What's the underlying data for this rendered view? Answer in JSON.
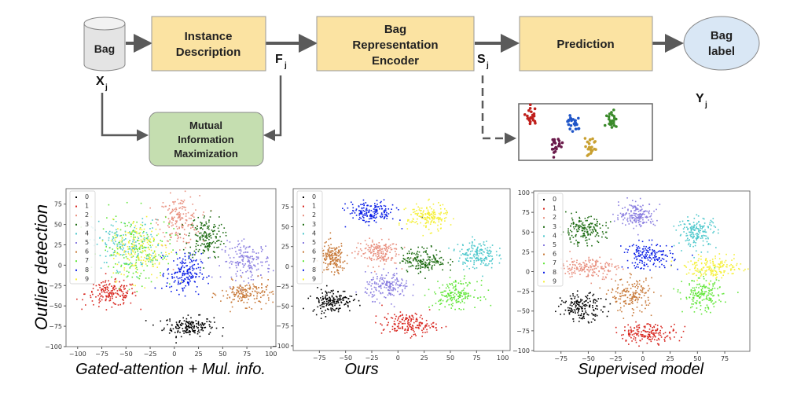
{
  "diagram": {
    "bag_label": "Bag",
    "instance_box": [
      "Instance",
      "Description"
    ],
    "encoder_box": [
      "Bag",
      "Representation",
      "Encoder"
    ],
    "prediction_box": "Prediction",
    "output_ellipse": [
      "Bag",
      "label"
    ],
    "mim_box": [
      "Mutual",
      "Information",
      "Maximization"
    ],
    "vars": {
      "x": "X",
      "f": "F",
      "s": "S",
      "y": "Y",
      "sub": "j"
    },
    "colors": {
      "yellow_box": "#fbe3a2",
      "green_box": "#c5deb0",
      "ellipse": "#d9e7f5",
      "arrow": "#5a5a5a",
      "cylinder": "#e4e4e4"
    },
    "mini_clusters": [
      {
        "color": "#c0201c"
      },
      {
        "color": "#1f55c8"
      },
      {
        "color": "#3a8a2a"
      },
      {
        "color": "#6a1a4a"
      },
      {
        "color": "#c9a030"
      }
    ]
  },
  "y_label": "Outlier detection",
  "legend": [
    "0",
    "1",
    "2",
    "3",
    "4",
    "5",
    "6",
    "7",
    "8",
    "9"
  ],
  "class_colors": [
    "#000000",
    "#d8261f",
    "#e88f7e",
    "#1d6b12",
    "#4ec8cc",
    "#8a7ee0",
    "#c87a3a",
    "#62e63a",
    "#0a1ee6",
    "#f5f03a"
  ],
  "chart_data": [
    {
      "type": "scatter",
      "title": "Gated-attention + Mul. info.",
      "xlim": [
        -112,
        105
      ],
      "ylim": [
        -100,
        94
      ],
      "xticks": [
        -100,
        -75,
        -50,
        -25,
        0,
        25,
        50,
        75,
        100
      ],
      "yticks": [
        -100,
        -75,
        -50,
        -25,
        0,
        25,
        50,
        75
      ],
      "clusters": [
        {
          "label": "0",
          "center": [
            15,
            -75
          ],
          "spread": [
            17,
            8
          ]
        },
        {
          "label": "1",
          "center": [
            -65,
            -35
          ],
          "spread": [
            18,
            10
          ]
        },
        {
          "label": "2",
          "center": [
            5,
            55
          ],
          "spread": [
            14,
            20
          ]
        },
        {
          "label": "3",
          "center": [
            32,
            35
          ],
          "spread": [
            12,
            18
          ]
        },
        {
          "label": "4",
          "center": [
            -48,
            25
          ],
          "spread": [
            24,
            20
          ]
        },
        {
          "label": "5",
          "center": [
            75,
            5
          ],
          "spread": [
            17,
            15
          ]
        },
        {
          "label": "6",
          "center": [
            75,
            -35
          ],
          "spread": [
            18,
            10
          ]
        },
        {
          "label": "7",
          "center": [
            -40,
            18
          ],
          "spread": [
            25,
            30
          ]
        },
        {
          "label": "8",
          "center": [
            10,
            -10
          ],
          "spread": [
            12,
            16
          ]
        },
        {
          "label": "9",
          "center": [
            -35,
            20
          ],
          "spread": [
            20,
            25
          ]
        }
      ]
    },
    {
      "type": "scatter",
      "title": "Ours",
      "xlim": [
        -100,
        107
      ],
      "ylim": [
        -106,
        98
      ],
      "xticks": [
        -75,
        -50,
        -25,
        0,
        25,
        50,
        75,
        100
      ],
      "yticks": [
        -100,
        -75,
        -50,
        -25,
        0,
        25,
        50,
        75
      ],
      "clusters": [
        {
          "label": "0",
          "center": [
            -63,
            -43
          ],
          "spread": [
            13,
            10
          ]
        },
        {
          "label": "1",
          "center": [
            10,
            -73
          ],
          "spread": [
            17,
            9
          ]
        },
        {
          "label": "2",
          "center": [
            -20,
            18
          ],
          "spread": [
            14,
            11
          ]
        },
        {
          "label": "3",
          "center": [
            25,
            8
          ],
          "spread": [
            14,
            10
          ]
        },
        {
          "label": "4",
          "center": [
            75,
            15
          ],
          "spread": [
            12,
            12
          ]
        },
        {
          "label": "5",
          "center": [
            -10,
            -25
          ],
          "spread": [
            14,
            11
          ]
        },
        {
          "label": "6",
          "center": [
            -62,
            10
          ],
          "spread": [
            8,
            13
          ]
        },
        {
          "label": "7",
          "center": [
            55,
            -35
          ],
          "spread": [
            14,
            11
          ]
        },
        {
          "label": "8",
          "center": [
            -25,
            68
          ],
          "spread": [
            15,
            9
          ]
        },
        {
          "label": "9",
          "center": [
            28,
            62
          ],
          "spread": [
            13,
            11
          ]
        }
      ]
    },
    {
      "type": "scatter",
      "title": "Supervised model",
      "xlim": [
        -100,
        98
      ],
      "ylim": [
        -101,
        102
      ],
      "xticks": [
        -75,
        -50,
        -25,
        0,
        25,
        50,
        75
      ],
      "yticks": [
        -100,
        -75,
        -50,
        -25,
        0,
        25,
        50,
        75,
        100
      ],
      "clusters": [
        {
          "label": "0",
          "center": [
            -55,
            -45
          ],
          "spread": [
            13,
            11
          ]
        },
        {
          "label": "1",
          "center": [
            5,
            -78
          ],
          "spread": [
            18,
            8
          ]
        },
        {
          "label": "2",
          "center": [
            -50,
            5
          ],
          "spread": [
            18,
            9
          ]
        },
        {
          "label": "3",
          "center": [
            -55,
            52
          ],
          "spread": [
            14,
            11
          ]
        },
        {
          "label": "4",
          "center": [
            50,
            50
          ],
          "spread": [
            12,
            13
          ]
        },
        {
          "label": "5",
          "center": [
            -5,
            72
          ],
          "spread": [
            11,
            10
          ]
        },
        {
          "label": "6",
          "center": [
            -10,
            -30
          ],
          "spread": [
            13,
            14
          ]
        },
        {
          "label": "7",
          "center": [
            55,
            -30
          ],
          "spread": [
            12,
            14
          ]
        },
        {
          "label": "8",
          "center": [
            5,
            20
          ],
          "spread": [
            15,
            11
          ]
        },
        {
          "label": "9",
          "center": [
            65,
            5
          ],
          "spread": [
            17,
            9
          ]
        }
      ]
    }
  ]
}
